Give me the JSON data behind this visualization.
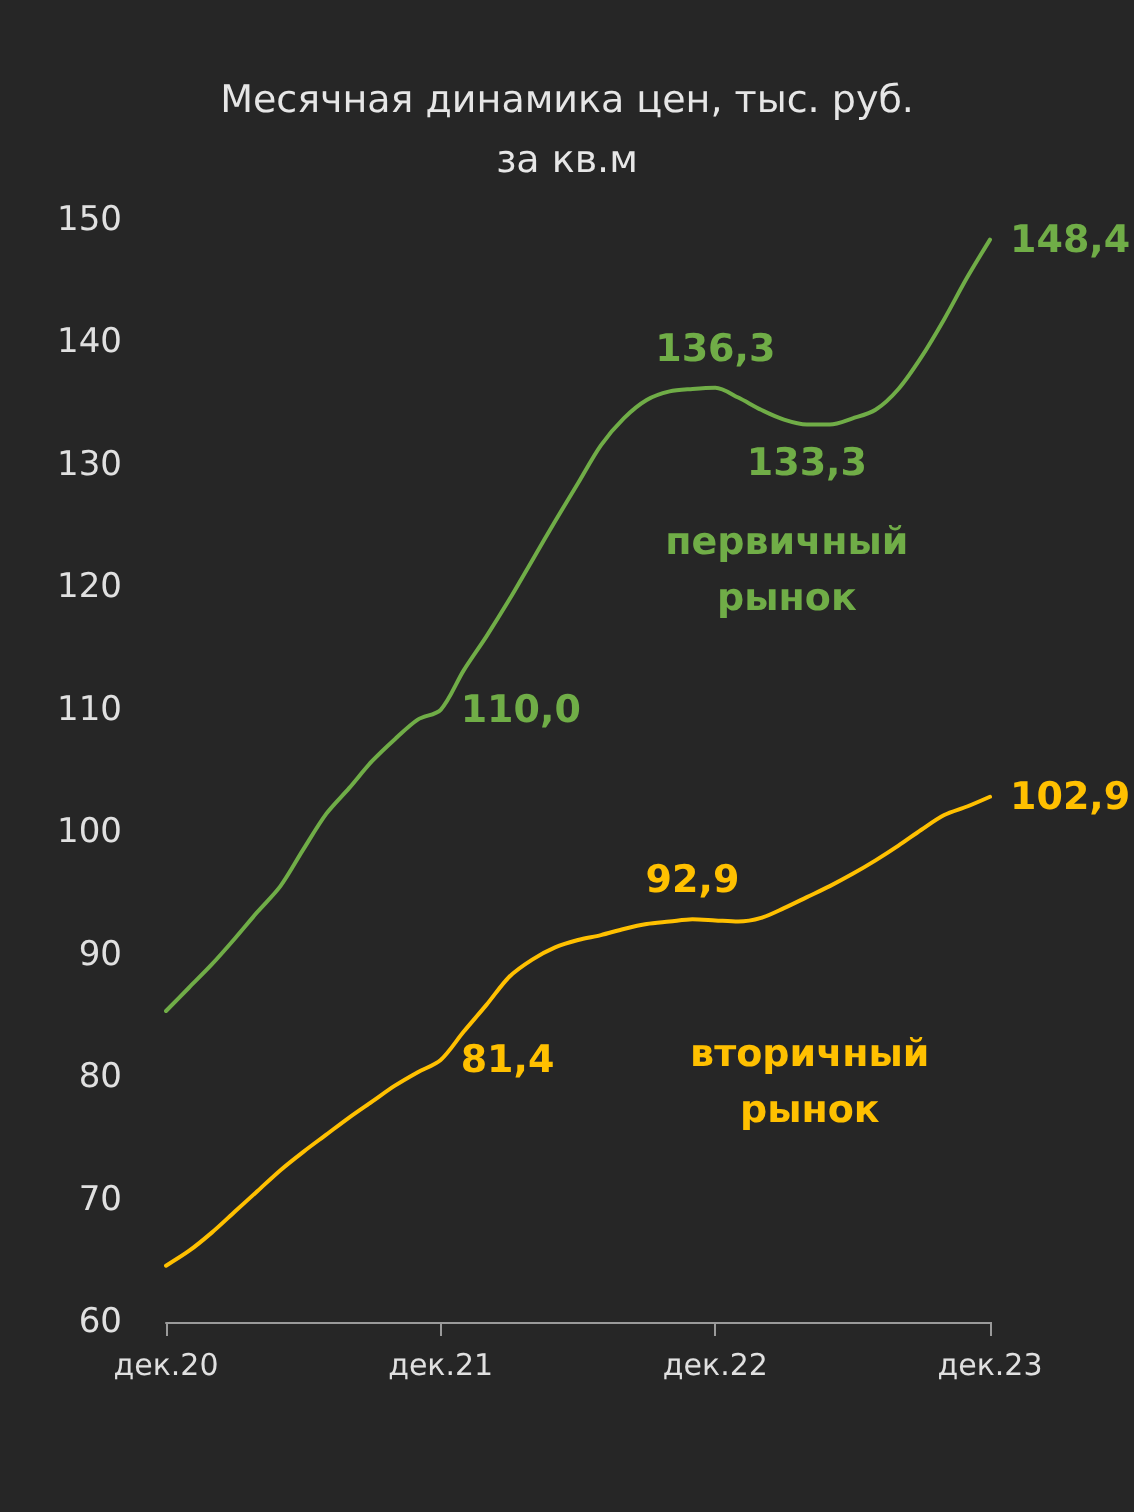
{
  "chart_data": {
    "type": "line",
    "title": "Месячная динамика цен, тыс. руб.\nза кв.м",
    "categories": [
      "дек.20",
      null,
      null,
      null,
      null,
      null,
      null,
      null,
      null,
      null,
      null,
      null,
      "дек.21",
      null,
      null,
      null,
      null,
      null,
      null,
      null,
      null,
      null,
      null,
      null,
      "дек.22",
      null,
      null,
      null,
      null,
      null,
      null,
      null,
      null,
      null,
      null,
      null,
      "дек.23"
    ],
    "series": [
      {
        "name": "первичный рынок",
        "color": "#70ad47",
        "values": [
          85.4,
          87.3,
          89.2,
          91.3,
          93.5,
          95.6,
          98.6,
          101.5,
          103.6,
          105.8,
          107.6,
          109.2,
          110.0,
          113.2,
          116.0,
          119.0,
          122.2,
          125.4,
          128.5,
          131.6,
          133.8,
          135.3,
          136.0,
          136.2,
          136.3,
          135.5,
          134.5,
          133.7,
          133.3,
          133.3,
          133.8,
          134.5,
          136.2,
          138.8,
          141.9,
          145.3,
          148.4
        ],
        "value_labels": [
          null,
          null,
          null,
          null,
          null,
          null,
          null,
          null,
          null,
          null,
          null,
          null,
          "110,0",
          null,
          null,
          null,
          null,
          null,
          null,
          null,
          null,
          null,
          null,
          null,
          "136,3",
          null,
          null,
          null,
          "133,3",
          null,
          null,
          null,
          null,
          null,
          null,
          null,
          "148,4"
        ]
      },
      {
        "name": "вторичный рынок",
        "color": "#ffc000",
        "values": [
          64.6,
          65.8,
          67.3,
          69.0,
          70.7,
          72.4,
          73.9,
          75.3,
          76.7,
          78.0,
          79.3,
          80.4,
          81.4,
          83.7,
          85.9,
          88.2,
          89.6,
          90.6,
          91.2,
          91.6,
          92.1,
          92.5,
          92.7,
          92.9,
          92.8,
          92.7,
          93.0,
          93.8,
          94.7,
          95.6,
          96.6,
          97.7,
          98.9,
          100.2,
          101.4,
          102.1,
          102.9
        ],
        "value_labels": [
          null,
          null,
          null,
          null,
          null,
          null,
          null,
          null,
          null,
          null,
          null,
          null,
          "81,4",
          null,
          null,
          null,
          null,
          null,
          null,
          null,
          null,
          null,
          null,
          "92,9",
          null,
          null,
          null,
          null,
          null,
          null,
          null,
          null,
          null,
          null,
          null,
          null,
          "102,9"
        ]
      }
    ],
    "ylim": [
      60,
      150
    ],
    "yticks": [
      60,
      70,
      80,
      90,
      100,
      110,
      120,
      130,
      140,
      150
    ],
    "grid": false,
    "legend": false,
    "marker": "none",
    "line_style": "solid"
  }
}
